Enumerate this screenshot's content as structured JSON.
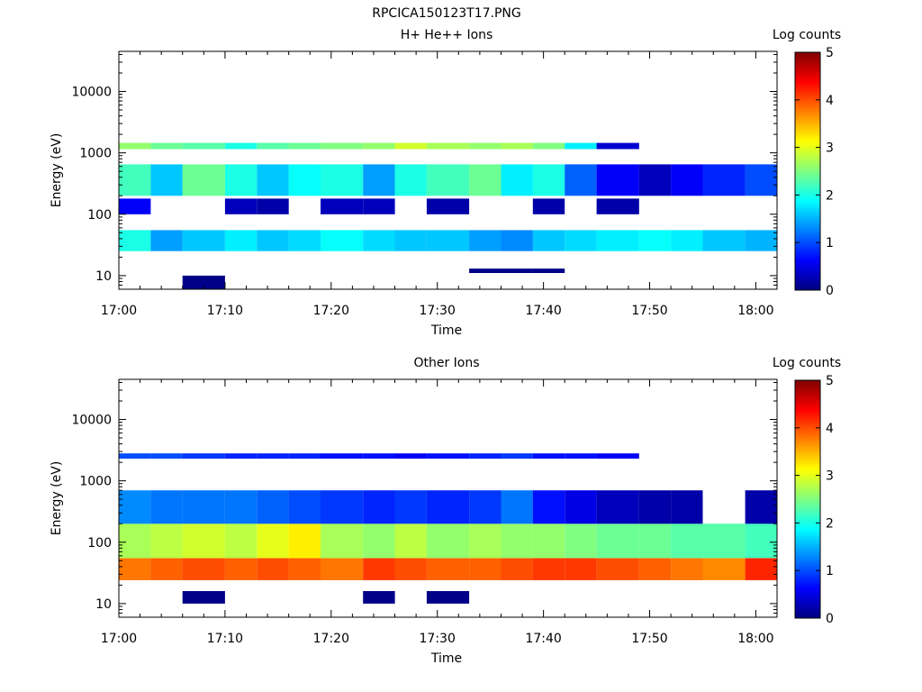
{
  "figure_title": "RPCICA150123T17.PNG",
  "colormap": [
    "#00007f",
    "#0000ff",
    "#0080ff",
    "#00ffff",
    "#80ff80",
    "#ffff00",
    "#ff8000",
    "#ff0000",
    "#7f0000"
  ],
  "chart_data": [
    {
      "type": "heatmap",
      "title": "H+ He++ Ions",
      "xlabel": "Time",
      "ylabel": "Energy (eV)",
      "yscale": "log",
      "xlim": [
        "17:00",
        "18:02"
      ],
      "ylim": [
        6,
        45000
      ],
      "xticks": [
        "17:00",
        "17:10",
        "17:20",
        "17:30",
        "17:40",
        "17:50",
        "18:00"
      ],
      "yticks": [
        "10",
        "100",
        "1000",
        "10000"
      ],
      "colorbar": {
        "label": "Log counts",
        "range": [
          0,
          5
        ],
        "ticks": [
          "0",
          "1",
          "2",
          "3",
          "4",
          "5"
        ]
      },
      "time_bins_start": [
        "17:00",
        "17:03",
        "17:06",
        "17:10",
        "17:13",
        "17:16",
        "17:19",
        "17:23",
        "17:26",
        "17:29",
        "17:33",
        "17:36",
        "17:39",
        "17:42",
        "17:45",
        "17:49",
        "17:52",
        "17:55",
        "17:59"
      ],
      "bands": [
        {
          "e": [
            25,
            55
          ],
          "v": [
            2.0,
            1.4,
            1.6,
            1.8,
            1.6,
            1.7,
            1.9,
            1.7,
            1.6,
            1.6,
            1.4,
            1.3,
            1.6,
            1.7,
            1.8,
            1.9,
            1.8,
            1.6,
            1.5
          ]
        },
        {
          "e": [
            200,
            650
          ],
          "v": [
            2.2,
            1.6,
            2.4,
            2.0,
            1.6,
            1.9,
            2.0,
            1.4,
            2.0,
            2.2,
            2.4,
            1.8,
            2.0,
            1.1,
            0.6,
            0.3,
            0.6,
            0.8,
            1.0
          ]
        },
        {
          "e": [
            1150,
            1450
          ],
          "v": [
            2.6,
            2.4,
            2.3,
            2.0,
            2.3,
            2.4,
            2.5,
            2.6,
            2.9,
            2.7,
            2.6,
            2.7,
            2.5,
            1.8,
            0.4,
            0,
            0,
            0,
            0
          ]
        },
        {
          "e": [
            100,
            180
          ],
          "v": [
            0.6,
            0,
            0,
            0.3,
            0.2,
            0,
            0.3,
            0.3,
            0,
            0.2,
            0,
            0,
            0.2,
            0,
            0.2,
            0,
            0,
            0,
            0
          ]
        },
        {
          "e": [
            11,
            13
          ],
          "v": [
            0,
            0,
            0,
            0,
            0,
            0,
            0,
            0,
            0,
            0,
            0.05,
            0.05,
            0.05,
            0,
            0,
            0,
            0,
            0,
            0
          ]
        },
        {
          "e": [
            6,
            10
          ],
          "v": [
            0,
            0,
            0.05,
            0,
            0,
            0,
            0,
            0,
            0,
            0,
            0,
            0,
            0,
            0,
            0,
            0,
            0,
            0,
            0
          ]
        }
      ]
    },
    {
      "type": "heatmap",
      "title": "Other Ions",
      "xlabel": "Time",
      "ylabel": "Energy (eV)",
      "yscale": "log",
      "xlim": [
        "17:00",
        "18:02"
      ],
      "ylim": [
        6,
        45000
      ],
      "xticks": [
        "17:00",
        "17:10",
        "17:20",
        "17:30",
        "17:40",
        "17:50",
        "18:00"
      ],
      "yticks": [
        "10",
        "100",
        "1000",
        "10000"
      ],
      "colorbar": {
        "label": "Log counts",
        "range": [
          0,
          5
        ],
        "ticks": [
          "0",
          "1",
          "2",
          "3",
          "4",
          "5"
        ]
      },
      "time_bins_start": [
        "17:00",
        "17:03",
        "17:06",
        "17:10",
        "17:13",
        "17:16",
        "17:19",
        "17:23",
        "17:26",
        "17:29",
        "17:33",
        "17:36",
        "17:39",
        "17:42",
        "17:45",
        "17:49",
        "17:52",
        "17:55",
        "17:59"
      ],
      "bands": [
        {
          "e": [
            24,
            55
          ],
          "v": [
            3.8,
            3.9,
            4.0,
            3.9,
            4.0,
            3.9,
            3.8,
            4.1,
            4.0,
            3.9,
            3.9,
            4.0,
            4.1,
            4.1,
            4.0,
            3.9,
            3.8,
            3.7,
            4.2
          ]
        },
        {
          "e": [
            55,
            200
          ],
          "v": [
            2.7,
            2.8,
            2.9,
            2.8,
            3.0,
            3.2,
            2.7,
            2.6,
            2.8,
            2.6,
            2.7,
            2.6,
            2.6,
            2.5,
            2.4,
            2.4,
            2.3,
            2.3,
            2.2
          ]
        },
        {
          "e": [
            200,
            700
          ],
          "v": [
            1.3,
            1.2,
            1.2,
            1.2,
            1.1,
            1.0,
            0.9,
            0.8,
            0.9,
            0.8,
            0.9,
            1.2,
            0.7,
            0.5,
            0.3,
            0.2,
            0.2,
            0,
            0.2
          ]
        },
        {
          "e": [
            2300,
            2800
          ],
          "v": [
            1.0,
            1.0,
            0.9,
            0.8,
            0.8,
            0.8,
            0.7,
            0.7,
            0.6,
            0.7,
            0.8,
            0.9,
            0.7,
            0.7,
            0.6,
            0,
            0,
            0,
            0
          ]
        },
        {
          "e": [
            10,
            16
          ],
          "v": [
            0,
            0,
            0.05,
            0,
            0,
            0,
            0,
            0.05,
            0,
            0.05,
            0,
            0,
            0,
            0,
            0,
            0,
            0,
            0,
            0
          ]
        }
      ]
    }
  ]
}
